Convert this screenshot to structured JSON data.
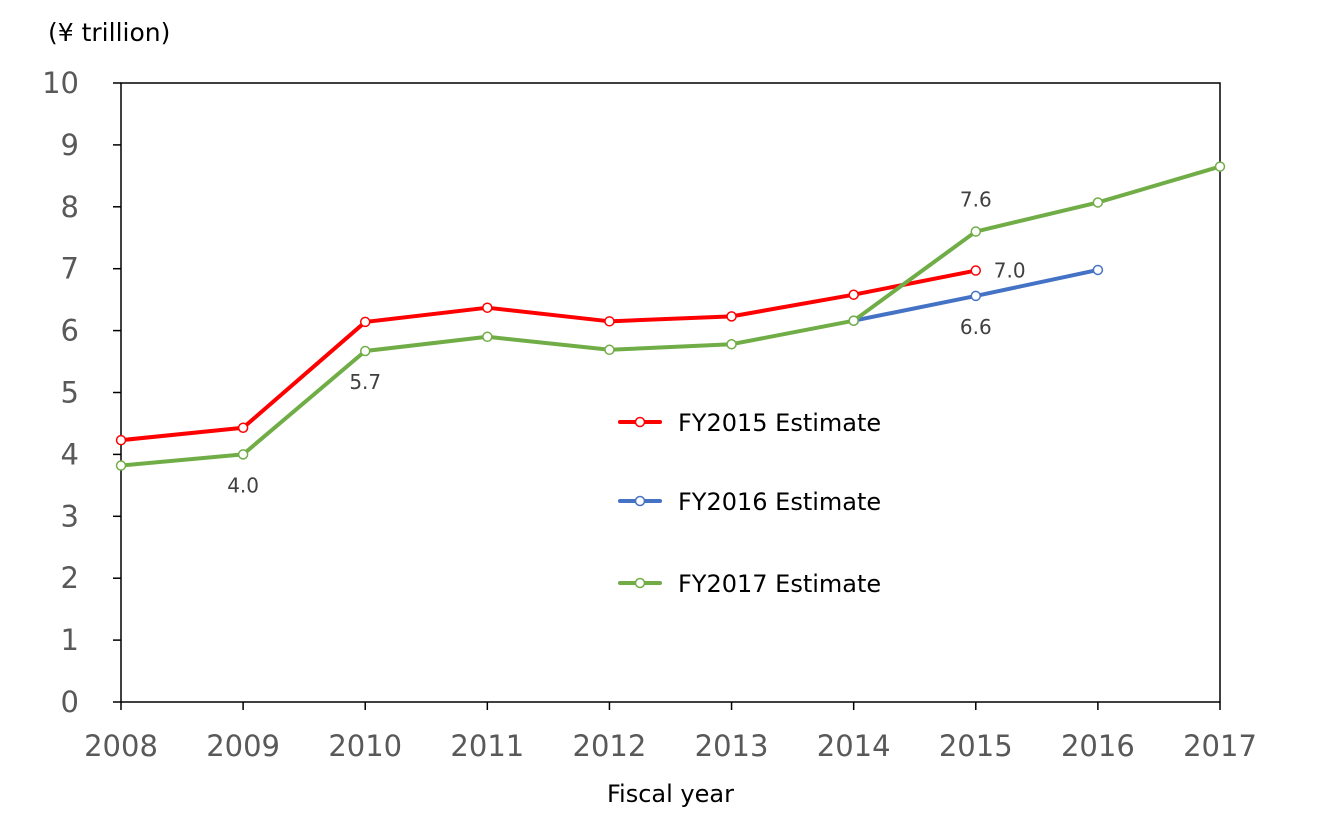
{
  "chart_data": {
    "type": "line",
    "unit_label": "(¥ trillion)",
    "xlabel": "Fiscal year",
    "ylabel": "",
    "ylim": [
      0,
      10
    ],
    "yticks": [
      0,
      1,
      2,
      3,
      4,
      5,
      6,
      7,
      8,
      9,
      10
    ],
    "categories": [
      "2008",
      "2009",
      "2010",
      "2011",
      "2012",
      "2013",
      "2014",
      "2015",
      "2016",
      "2017"
    ],
    "grid": false,
    "legend_position": "center",
    "series": [
      {
        "name": "FY2015 Estimate",
        "color": "#ff0000",
        "values": [
          4.23,
          4.43,
          6.14,
          6.37,
          6.15,
          6.23,
          6.58,
          6.97,
          null,
          null
        ]
      },
      {
        "name": "FY2016 Estimate",
        "color": "#4472c4",
        "values": [
          null,
          null,
          null,
          null,
          null,
          null,
          6.16,
          6.56,
          6.98,
          null
        ]
      },
      {
        "name": "FY2017 Estimate",
        "color": "#70ad47",
        "values": [
          3.82,
          4.0,
          5.67,
          5.9,
          5.69,
          5.78,
          6.16,
          7.6,
          8.07,
          8.65
        ]
      }
    ],
    "data_labels": [
      {
        "series": "FY2017 Estimate",
        "category": "2009",
        "text": "4.0",
        "position": "below"
      },
      {
        "series": "FY2017 Estimate",
        "category": "2010",
        "text": "5.7",
        "position": "below"
      },
      {
        "series": "FY2017 Estimate",
        "category": "2015",
        "text": "7.6",
        "position": "above"
      },
      {
        "series": "FY2015 Estimate",
        "category": "2015",
        "text": "7.0",
        "position": "right"
      },
      {
        "series": "FY2016 Estimate",
        "category": "2015",
        "text": "6.6",
        "position": "below"
      }
    ]
  }
}
